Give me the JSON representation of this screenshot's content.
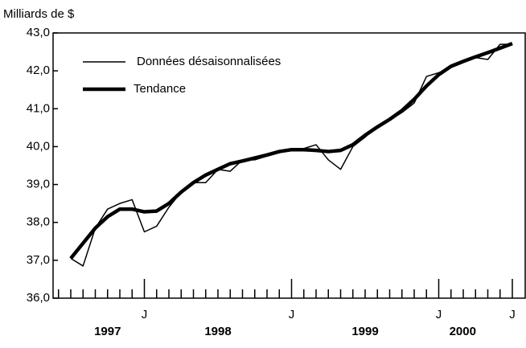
{
  "chart_data": {
    "type": "line",
    "y_axis_label": "Milliards de $",
    "categories": [
      null,
      null,
      null,
      null,
      null,
      null,
      "J",
      null,
      null,
      null,
      null,
      null,
      null,
      null,
      null,
      null,
      null,
      null,
      "J",
      null,
      null,
      null,
      null,
      null,
      null,
      null,
      null,
      null,
      null,
      null,
      "J",
      null,
      null,
      null,
      null,
      null,
      "J"
    ],
    "year_labels": [
      "1997",
      "1998",
      "1999",
      "2000"
    ],
    "series": [
      {
        "name": "Données désaisonnalisées",
        "color": "#000000",
        "line_width": 1.5,
        "values": [
          37.05,
          36.85,
          37.85,
          38.35,
          38.5,
          38.6,
          37.75,
          37.9,
          38.4,
          38.8,
          39.05,
          39.05,
          39.4,
          39.35,
          39.65,
          39.65,
          39.75,
          39.85,
          39.9,
          39.95,
          40.05,
          39.65,
          39.4,
          40.0,
          40.25,
          40.55,
          40.7,
          40.9,
          41.15,
          41.85,
          41.95,
          42.1,
          42.25,
          42.35,
          42.3,
          42.7,
          42.7
        ]
      },
      {
        "name": "Tendance",
        "color": "#000000",
        "line_width": 4.5,
        "values": [
          37.05,
          37.45,
          37.85,
          38.15,
          38.35,
          38.35,
          38.28,
          38.3,
          38.5,
          38.8,
          39.05,
          39.25,
          39.4,
          39.55,
          39.62,
          39.7,
          39.78,
          39.87,
          39.92,
          39.92,
          39.9,
          39.87,
          39.9,
          40.05,
          40.3,
          40.52,
          40.72,
          40.95,
          41.25,
          41.6,
          41.9,
          42.12,
          42.25,
          42.37,
          42.48,
          42.6,
          42.72
        ]
      }
    ],
    "ylim": [
      36,
      43
    ],
    "yticks": [
      {
        "value": 36,
        "label": "36,0"
      },
      {
        "value": 37,
        "label": "37,0"
      },
      {
        "value": 38,
        "label": "38,0"
      },
      {
        "value": 39,
        "label": "39,0"
      },
      {
        "value": 40,
        "label": "40,0"
      },
      {
        "value": 41,
        "label": "41,0"
      },
      {
        "value": 42,
        "label": "42,0"
      },
      {
        "value": 43,
        "label": "43,0"
      }
    ],
    "legend": "upper left",
    "grid": false
  }
}
